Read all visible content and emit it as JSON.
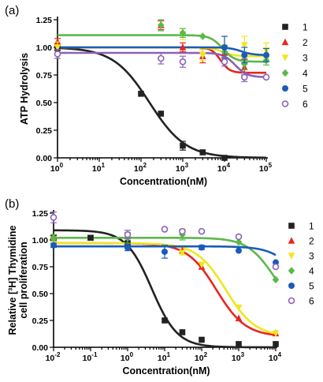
{
  "chart_data": [
    {
      "panel_label": "(a)",
      "type": "scatter",
      "x_scale": "log",
      "xlabel": "Concentration(nM)",
      "ylabel": "ATP Hydrolysis",
      "xlim": [
        1,
        100000
      ],
      "ylim": [
        0,
        1.25
      ],
      "x_ticks": [
        1,
        10,
        100,
        1000,
        10000,
        100000
      ],
      "x_tick_labels": [
        [
          "10",
          "0"
        ],
        [
          "10",
          "1"
        ],
        [
          "10",
          "2"
        ],
        [
          "10",
          "3"
        ],
        [
          "10",
          "4"
        ],
        [
          "10",
          "5"
        ]
      ],
      "y_ticks": [
        0,
        0.25,
        0.5,
        0.75,
        1.0,
        1.25
      ],
      "y_tick_labels": [
        "0.00",
        "0.25",
        "0.50",
        "0.75",
        "1.00",
        "1.25"
      ],
      "legend_position": "right",
      "series": [
        {
          "name": "1",
          "color": "#222222",
          "marker": "square",
          "points": [
            {
              "x": 1,
              "y": 1.0,
              "err": 0.03
            },
            {
              "x": 100,
              "y": 0.58,
              "err": 0.0
            },
            {
              "x": 300,
              "y": 0.4,
              "err": 0.0
            },
            {
              "x": 1000,
              "y": 0.11,
              "err": 0.04
            },
            {
              "x": 3000,
              "y": 0.05,
              "err": 0.0
            },
            {
              "x": 10000,
              "y": 0.0,
              "err": 0.0
            }
          ],
          "curve": {
            "top": 1.0,
            "bottom": 0.0,
            "ic50": 160,
            "hill": 1.0
          }
        },
        {
          "name": "2",
          "color": "#e8261f",
          "marker": "triangle",
          "points": [
            {
              "x": 1,
              "y": 1.05,
              "err": 0.03
            },
            {
              "x": 300,
              "y": 1.2,
              "err": 0.04
            },
            {
              "x": 1000,
              "y": 1.0,
              "err": 0.04
            },
            {
              "x": 3000,
              "y": 0.92,
              "err": 0.06
            },
            {
              "x": 10000,
              "y": 0.95,
              "err": 0.07
            },
            {
              "x": 30000,
              "y": 0.82,
              "err": 0.07
            }
          ],
          "curve": {
            "top": 1.0,
            "bottom": 0.77,
            "ic50": 8000,
            "hill": 4.0
          }
        },
        {
          "name": "3",
          "color": "#f0e61c",
          "marker": "triangle-down",
          "points": [
            {
              "x": 1,
              "y": 1.0,
              "err": 0.05
            },
            {
              "x": 1000,
              "y": 1.12,
              "err": 0.05
            },
            {
              "x": 3000,
              "y": 0.93,
              "err": 0.05
            },
            {
              "x": 10000,
              "y": 1.0,
              "err": 0.1
            },
            {
              "x": 30000,
              "y": 1.02,
              "err": 0.08
            },
            {
              "x": 100000,
              "y": 0.97,
              "err": 0.07
            }
          ],
          "curve": {
            "top": 1.0,
            "bottom": 0.92,
            "ic50": 9000,
            "hill": 3.0
          }
        },
        {
          "name": "4",
          "color": "#5bb84a",
          "marker": "diamond",
          "points": [
            {
              "x": 300,
              "y": 1.2,
              "err": 0.05
            },
            {
              "x": 1000,
              "y": 1.13,
              "err": 0.04
            },
            {
              "x": 3000,
              "y": 1.1,
              "err": 0.0
            },
            {
              "x": 10000,
              "y": 0.96,
              "err": 0.05
            },
            {
              "x": 30000,
              "y": 0.85,
              "err": 0.05
            },
            {
              "x": 100000,
              "y": 0.88,
              "err": 0.04
            }
          ],
          "curve": {
            "top": 1.11,
            "bottom": 0.87,
            "ic50": 9000,
            "hill": 3.0
          }
        },
        {
          "name": "5",
          "color": "#1a5cb8",
          "marker": "circle",
          "points": [
            {
              "x": 10000,
              "y": 1.0,
              "err": 0.1
            },
            {
              "x": 30000,
              "y": 0.93,
              "err": 0.07
            },
            {
              "x": 100000,
              "y": 0.93,
              "err": 0.06
            }
          ],
          "curve": {
            "top": 1.0,
            "bottom": 0.93,
            "ic50": 25000,
            "hill": 3.0
          }
        },
        {
          "name": "6",
          "color": "#8a63b8",
          "marker": "circle-open",
          "points": [
            {
              "x": 1,
              "y": 0.94,
              "err": 0.04
            },
            {
              "x": 300,
              "y": 0.9,
              "err": 0.05
            },
            {
              "x": 1000,
              "y": 0.87,
              "err": 0.05
            },
            {
              "x": 10000,
              "y": 0.87,
              "err": 0.04
            },
            {
              "x": 30000,
              "y": 0.73,
              "err": 0.04
            },
            {
              "x": 100000,
              "y": 0.73,
              "err": 0.0
            }
          ],
          "curve": {
            "top": 0.95,
            "bottom": 0.73,
            "ic50": 18000,
            "hill": 3.0
          }
        }
      ]
    },
    {
      "panel_label": "(b)",
      "type": "scatter",
      "x_scale": "log",
      "xlabel": "Concentration(nM)",
      "ylabel_line1": "Relative [³H] Thymidine",
      "ylabel_line2": "cell proliferation",
      "xlim": [
        0.01,
        10000
      ],
      "ylim": [
        0,
        1.25
      ],
      "x_ticks": [
        0.01,
        0.1,
        1,
        10,
        100,
        1000,
        10000
      ],
      "x_tick_labels": [
        [
          "10",
          "-2"
        ],
        [
          "10",
          "-1"
        ],
        [
          "10",
          "0"
        ],
        [
          "10",
          "1"
        ],
        [
          "10",
          "2"
        ],
        [
          "10",
          "3"
        ],
        [
          "10",
          "4"
        ]
      ],
      "y_ticks": [
        0,
        0.25,
        0.5,
        0.75,
        1.0,
        1.25
      ],
      "y_tick_labels": [
        "0.00",
        "0.25",
        "0.50",
        "0.75",
        "1.00",
        "1.25"
      ],
      "legend_position": "right",
      "series": [
        {
          "name": "1",
          "color": "#222222",
          "marker": "square",
          "points": [
            {
              "x": 0.01,
              "y": 1.02,
              "err": 0.02
            },
            {
              "x": 0.1,
              "y": 1.02,
              "err": 0.02
            },
            {
              "x": 1,
              "y": 0.97,
              "err": 0.05
            },
            {
              "x": 10,
              "y": 0.25,
              "err": 0.0
            },
            {
              "x": 30,
              "y": 0.14,
              "err": 0.0
            },
            {
              "x": 100,
              "y": 0.07,
              "err": 0.0
            },
            {
              "x": 1000,
              "y": 0.03,
              "err": 0.0
            },
            {
              "x": 10000,
              "y": 0.03,
              "err": 0.0
            }
          ],
          "curve": {
            "top": 1.09,
            "bottom": 0.0,
            "ic50": 4.5,
            "hill": 1.25
          }
        },
        {
          "name": "2",
          "color": "#e8261f",
          "marker": "triangle",
          "points": [
            {
              "x": 0.01,
              "y": 1.02,
              "err": 0.03
            },
            {
              "x": 30,
              "y": 0.9,
              "err": 0.0
            },
            {
              "x": 100,
              "y": 0.75,
              "err": 0.0
            },
            {
              "x": 1000,
              "y": 0.27,
              "err": 0.0
            },
            {
              "x": 10000,
              "y": 0.13,
              "err": 0.0
            }
          ],
          "curve": {
            "top": 0.97,
            "bottom": 0.1,
            "ic50": 250,
            "hill": 1.1
          }
        },
        {
          "name": "3",
          "color": "#f0e61c",
          "marker": "triangle-down",
          "points": [
            {
              "x": 0.01,
              "y": 1.0,
              "err": 0.03
            },
            {
              "x": 30,
              "y": 0.88,
              "err": 0.02
            },
            {
              "x": 100,
              "y": 0.77,
              "err": 0.0
            },
            {
              "x": 1000,
              "y": 0.37,
              "err": 0.0
            },
            {
              "x": 10000,
              "y": 0.13,
              "err": 0.0
            }
          ],
          "curve": {
            "top": 0.97,
            "bottom": 0.1,
            "ic50": 450,
            "hill": 1.1
          }
        },
        {
          "name": "4",
          "color": "#5bb84a",
          "marker": "diamond",
          "points": [
            {
              "x": 0.01,
              "y": 1.02,
              "err": 0.03
            },
            {
              "x": 1,
              "y": 1.02,
              "err": 0.05
            },
            {
              "x": 30,
              "y": 1.05,
              "err": 0.05
            },
            {
              "x": 1000,
              "y": 0.98,
              "err": 0.0
            },
            {
              "x": 10000,
              "y": 0.63,
              "err": 0.0
            }
          ],
          "curve": {
            "top": 1.02,
            "bottom": 0.3,
            "ic50": 9000,
            "hill": 1.2
          }
        },
        {
          "name": "5",
          "color": "#1a5cb8",
          "marker": "circle",
          "points": [
            {
              "x": 0.01,
              "y": 0.95,
              "err": 0.02
            },
            {
              "x": 1,
              "y": 0.93,
              "err": 0.03
            },
            {
              "x": 10,
              "y": 0.89,
              "err": 0.06
            },
            {
              "x": 100,
              "y": 0.93,
              "err": 0.02
            },
            {
              "x": 1000,
              "y": 0.9,
              "err": 0.0
            },
            {
              "x": 10000,
              "y": 0.79,
              "err": 0.0
            }
          ],
          "curve": {
            "top": 0.94,
            "bottom": 0.3,
            "ic50": 50000,
            "hill": 1.2
          }
        },
        {
          "name": "6",
          "color": "#8a63b8",
          "marker": "circle-open",
          "points": [
            {
              "x": 0.01,
              "y": 1.21,
              "err": 0.05
            },
            {
              "x": 1,
              "y": 1.05,
              "err": 0.04
            },
            {
              "x": 10,
              "y": 1.1,
              "err": 0.0
            },
            {
              "x": 30,
              "y": 1.08,
              "err": 0.0
            },
            {
              "x": 100,
              "y": 1.08,
              "err": 0.0
            },
            {
              "x": 1000,
              "y": 1.03,
              "err": 0.0
            },
            {
              "x": 10000,
              "y": 0.75,
              "err": 0.0
            }
          ]
        }
      ]
    }
  ]
}
